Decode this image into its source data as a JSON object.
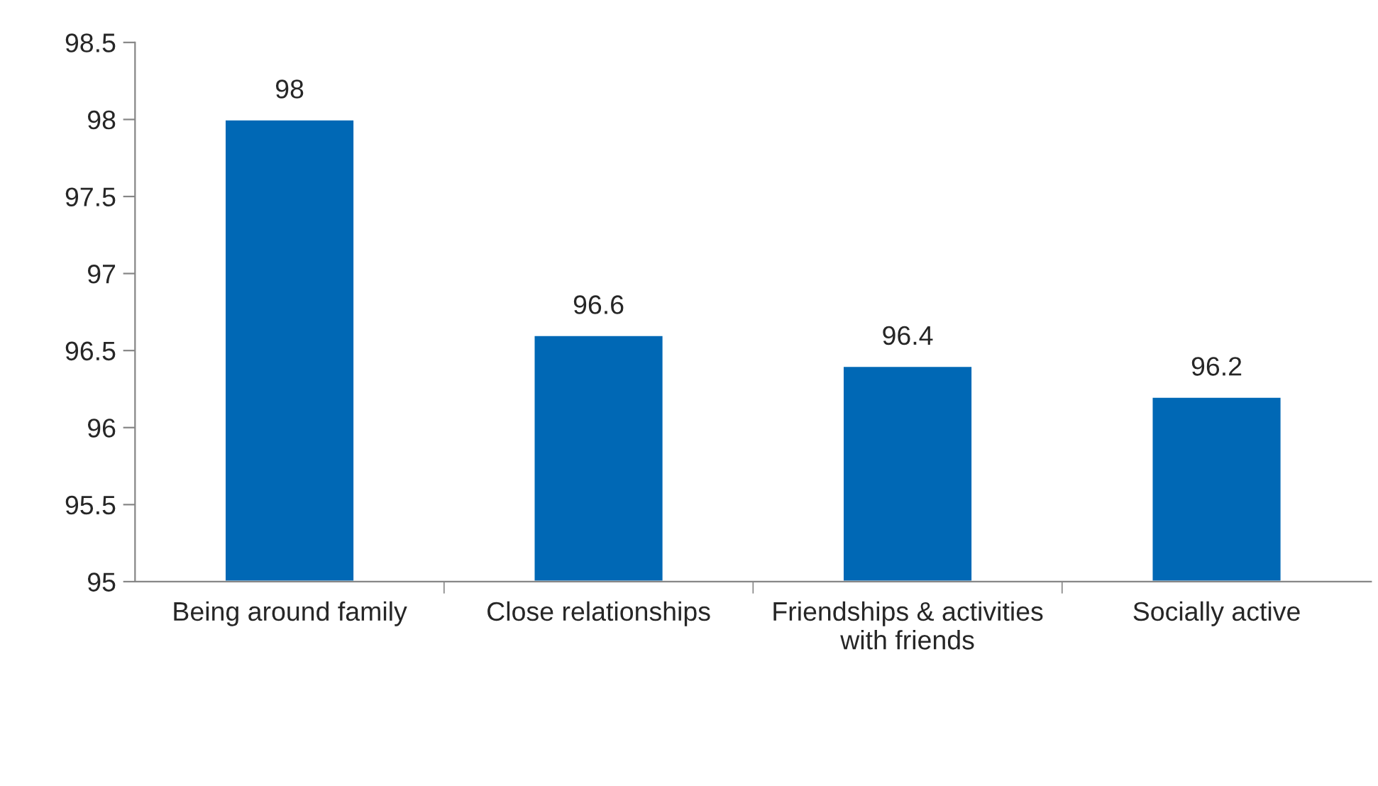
{
  "chart_data": {
    "type": "bar",
    "categories": [
      "Being around family",
      "Close relationships",
      "Friendships & activities with friends",
      "Socially active"
    ],
    "values": [
      98,
      96.6,
      96.4,
      96.2
    ],
    "color": "#0068b5",
    "ylim": [
      95,
      98.5
    ],
    "yticks": [
      95,
      95.5,
      96,
      96.5,
      97,
      97.5,
      98,
      98.5
    ],
    "data_labels": true,
    "grid": false,
    "legend": false
  }
}
